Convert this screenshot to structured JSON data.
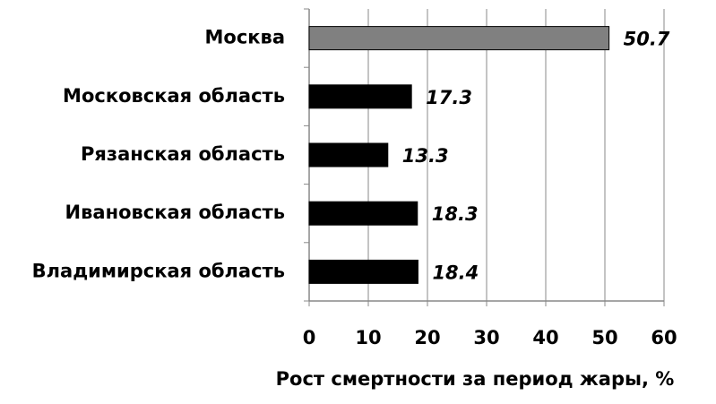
{
  "chart_data": {
    "type": "bar",
    "orientation": "horizontal",
    "categories": [
      "Москва",
      "Московская область",
      "Рязанская область",
      "Ивановская область",
      "Владимирская область"
    ],
    "values": [
      50.7,
      17.3,
      13.3,
      18.3,
      18.4
    ],
    "colors": [
      "#808080",
      "#000000",
      "#000000",
      "#000000",
      "#000000"
    ],
    "xlabel": "Рост смертности за период жары, %",
    "xlim": [
      0,
      60
    ],
    "xticks": [
      0,
      10,
      20,
      30,
      40,
      50,
      60
    ],
    "grid": true
  }
}
